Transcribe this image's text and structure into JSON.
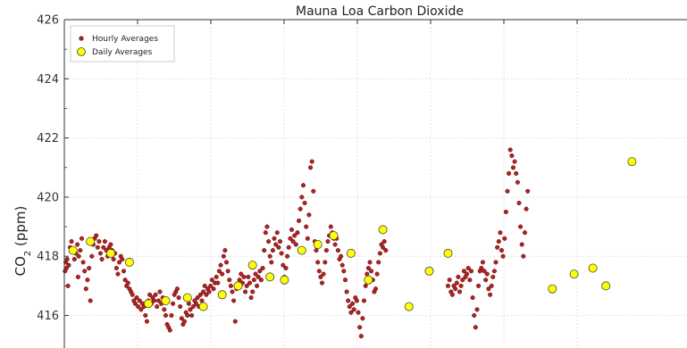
{
  "chart_data": {
    "type": "scatter",
    "title": "Mauna Loa Carbon Dioxide",
    "ylabel_main": "CO",
    "ylabel_sub": "2",
    "ylabel_tail": " (ppm)",
    "ylim": [
      414.9,
      426
    ],
    "yticks": [
      416,
      418,
      420,
      422,
      424,
      426
    ],
    "ytick_labels": [
      "416",
      "418",
      "420",
      "422",
      "424",
      "426"
    ],
    "xlim": [
      0,
      43
    ],
    "grid": true,
    "legend_placement": "top-left",
    "colors": {
      "hourly": "#b22222",
      "hourly_edge": "#5a0a0a",
      "daily": "#ffff00",
      "daily_edge": "#444444",
      "grid": "#dddddd"
    },
    "series": [
      {
        "name": "Hourly Averages",
        "marker": "small-dot",
        "points": [
          [
            0.05,
            417.5
          ],
          [
            0.1,
            417.8
          ],
          [
            0.15,
            417.6
          ],
          [
            0.2,
            417.9
          ],
          [
            0.25,
            417.0
          ],
          [
            0.3,
            417.7
          ],
          [
            0.4,
            418.3
          ],
          [
            0.5,
            418.5
          ],
          [
            0.6,
            418.2
          ],
          [
            0.7,
            417.9
          ],
          [
            0.8,
            418.1
          ],
          [
            0.9,
            418.4
          ],
          [
            0.95,
            417.3
          ],
          [
            1.0,
            418.0
          ],
          [
            1.1,
            418.2
          ],
          [
            1.2,
            418.6
          ],
          [
            1.3,
            417.8
          ],
          [
            1.4,
            417.5
          ],
          [
            1.5,
            416.9
          ],
          [
            1.6,
            417.2
          ],
          [
            1.7,
            417.6
          ],
          [
            1.8,
            416.5
          ],
          [
            1.9,
            418.0
          ],
          [
            2.0,
            418.4
          ],
          [
            2.1,
            418.6
          ],
          [
            2.2,
            418.7
          ],
          [
            2.3,
            418.3
          ],
          [
            2.4,
            418.5
          ],
          [
            2.5,
            418.1
          ],
          [
            2.6,
            417.9
          ],
          [
            2.7,
            418.3
          ],
          [
            2.8,
            418.5
          ],
          [
            2.9,
            418.2
          ],
          [
            3.0,
            418.0
          ],
          [
            3.1,
            418.3
          ],
          [
            3.2,
            418.4
          ],
          [
            3.3,
            418.2
          ],
          [
            3.4,
            417.9
          ],
          [
            3.5,
            418.1
          ],
          [
            3.6,
            417.6
          ],
          [
            3.7,
            417.4
          ],
          [
            3.8,
            417.8
          ],
          [
            3.9,
            418.0
          ],
          [
            4.0,
            417.9
          ],
          [
            4.1,
            417.5
          ],
          [
            4.2,
            417.2
          ],
          [
            4.3,
            417.0
          ],
          [
            4.4,
            417.1
          ],
          [
            4.5,
            416.9
          ],
          [
            4.6,
            416.8
          ],
          [
            4.7,
            416.7
          ],
          [
            4.8,
            416.5
          ],
          [
            4.9,
            416.4
          ],
          [
            5.0,
            416.6
          ],
          [
            5.1,
            416.3
          ],
          [
            5.2,
            416.5
          ],
          [
            5.3,
            416.2
          ],
          [
            5.4,
            416.4
          ],
          [
            5.5,
            416.3
          ],
          [
            5.6,
            416.0
          ],
          [
            5.7,
            415.8
          ],
          [
            5.8,
            416.5
          ],
          [
            5.9,
            416.7
          ],
          [
            6.0,
            416.4
          ],
          [
            6.1,
            416.6
          ],
          [
            6.2,
            416.5
          ],
          [
            6.3,
            416.7
          ],
          [
            6.4,
            416.3
          ],
          [
            6.5,
            416.5
          ],
          [
            6.6,
            416.8
          ],
          [
            6.7,
            416.4
          ],
          [
            6.8,
            416.6
          ],
          [
            6.9,
            416.2
          ],
          [
            7.0,
            416.0
          ],
          [
            7.1,
            415.7
          ],
          [
            7.2,
            415.6
          ],
          [
            7.3,
            415.5
          ],
          [
            7.4,
            416.0
          ],
          [
            7.5,
            416.4
          ],
          [
            7.6,
            416.7
          ],
          [
            7.7,
            416.8
          ],
          [
            7.8,
            416.9
          ],
          [
            7.9,
            416.6
          ],
          [
            8.0,
            416.3
          ],
          [
            8.1,
            415.9
          ],
          [
            8.2,
            415.7
          ],
          [
            8.3,
            415.8
          ],
          [
            8.4,
            416.1
          ],
          [
            8.5,
            416.0
          ],
          [
            8.6,
            416.4
          ],
          [
            8.7,
            416.2
          ],
          [
            8.8,
            416.0
          ],
          [
            8.9,
            416.3
          ],
          [
            9.0,
            416.5
          ],
          [
            9.1,
            416.4
          ],
          [
            9.2,
            416.6
          ],
          [
            9.3,
            416.3
          ],
          [
            9.4,
            416.7
          ],
          [
            9.5,
            416.5
          ],
          [
            9.6,
            416.8
          ],
          [
            9.7,
            417.0
          ],
          [
            9.8,
            416.7
          ],
          [
            9.9,
            416.9
          ],
          [
            10.0,
            416.8
          ],
          [
            10.1,
            417.0
          ],
          [
            10.2,
            417.2
          ],
          [
            10.3,
            416.9
          ],
          [
            10.4,
            417.1
          ],
          [
            10.5,
            417.3
          ],
          [
            10.6,
            417.1
          ],
          [
            10.7,
            417.5
          ],
          [
            10.8,
            417.7
          ],
          [
            10.9,
            417.4
          ],
          [
            11.0,
            418.0
          ],
          [
            11.1,
            418.2
          ],
          [
            11.2,
            417.8
          ],
          [
            11.3,
            417.5
          ],
          [
            11.4,
            417.2
          ],
          [
            11.5,
            417.0
          ],
          [
            11.6,
            416.8
          ],
          [
            11.7,
            416.5
          ],
          [
            11.8,
            415.8
          ],
          [
            11.9,
            416.9
          ],
          [
            12.0,
            417.0
          ],
          [
            12.1,
            417.2
          ],
          [
            12.2,
            417.4
          ],
          [
            12.3,
            417.1
          ],
          [
            12.4,
            417.3
          ],
          [
            12.5,
            416.8
          ],
          [
            12.6,
            417.0
          ],
          [
            12.7,
            417.3
          ],
          [
            12.8,
            417.1
          ],
          [
            12.9,
            416.6
          ],
          [
            13.0,
            416.8
          ],
          [
            13.1,
            417.2
          ],
          [
            13.2,
            417.4
          ],
          [
            13.3,
            417.0
          ],
          [
            13.4,
            417.3
          ],
          [
            13.5,
            417.5
          ],
          [
            13.6,
            417.2
          ],
          [
            13.7,
            417.6
          ],
          [
            13.8,
            418.2
          ],
          [
            13.9,
            418.8
          ],
          [
            14.0,
            419.0
          ],
          [
            14.1,
            418.5
          ],
          [
            14.2,
            418.0
          ],
          [
            14.3,
            417.8
          ],
          [
            14.4,
            418.2
          ],
          [
            14.5,
            418.6
          ],
          [
            14.6,
            418.4
          ],
          [
            14.7,
            418.8
          ],
          [
            14.8,
            418.3
          ],
          [
            14.9,
            418.5
          ],
          [
            15.0,
            418.1
          ],
          [
            15.1,
            417.7
          ],
          [
            15.2,
            417.3
          ],
          [
            15.3,
            417.6
          ],
          [
            15.4,
            418.0
          ],
          [
            15.5,
            418.3
          ],
          [
            15.6,
            418.6
          ],
          [
            15.7,
            418.9
          ],
          [
            15.8,
            418.5
          ],
          [
            15.9,
            418.7
          ],
          [
            16.0,
            418.4
          ],
          [
            16.1,
            418.8
          ],
          [
            16.2,
            419.2
          ],
          [
            16.3,
            419.6
          ],
          [
            16.4,
            420.0
          ],
          [
            16.5,
            420.4
          ],
          [
            16.6,
            419.8
          ],
          [
            16.7,
            419.0
          ],
          [
            16.8,
            418.6
          ],
          [
            16.9,
            419.4
          ],
          [
            17.0,
            421.0
          ],
          [
            17.1,
            421.2
          ],
          [
            17.2,
            420.2
          ],
          [
            17.3,
            418.5
          ],
          [
            17.4,
            418.2
          ],
          [
            17.5,
            417.8
          ],
          [
            17.6,
            417.5
          ],
          [
            17.7,
            417.3
          ],
          [
            17.8,
            417.1
          ],
          [
            17.9,
            417.4
          ],
          [
            18.0,
            417.8
          ],
          [
            18.1,
            418.2
          ],
          [
            18.2,
            418.5
          ],
          [
            18.3,
            418.7
          ],
          [
            18.4,
            419.0
          ],
          [
            18.5,
            418.8
          ],
          [
            18.6,
            418.6
          ],
          [
            18.7,
            418.4
          ],
          [
            18.8,
            418.6
          ],
          [
            18.9,
            418.2
          ],
          [
            19.0,
            417.9
          ],
          [
            19.1,
            418.0
          ],
          [
            19.2,
            417.7
          ],
          [
            19.3,
            417.5
          ],
          [
            19.4,
            417.2
          ],
          [
            19.5,
            416.8
          ],
          [
            19.6,
            416.5
          ],
          [
            19.7,
            416.3
          ],
          [
            19.8,
            416.1
          ],
          [
            19.9,
            416.4
          ],
          [
            20.0,
            416.2
          ],
          [
            20.1,
            416.6
          ],
          [
            20.2,
            416.5
          ],
          [
            20.3,
            416.1
          ],
          [
            20.4,
            415.6
          ],
          [
            20.5,
            415.3
          ],
          [
            20.6,
            415.9
          ],
          [
            20.7,
            416.5
          ],
          [
            20.8,
            417.0
          ],
          [
            20.9,
            417.4
          ],
          [
            21.0,
            417.6
          ],
          [
            21.1,
            417.8
          ],
          [
            21.2,
            417.5
          ],
          [
            21.3,
            417.2
          ],
          [
            21.4,
            416.8
          ],
          [
            21.5,
            416.9
          ],
          [
            21.6,
            417.4
          ],
          [
            21.7,
            417.8
          ],
          [
            21.8,
            418.1
          ],
          [
            21.9,
            418.4
          ],
          [
            22.0,
            418.3
          ],
          [
            22.1,
            418.5
          ],
          [
            22.2,
            418.2
          ],
          [
            26.5,
            417.0
          ],
          [
            26.6,
            417.2
          ],
          [
            26.7,
            416.8
          ],
          [
            26.8,
            416.7
          ],
          [
            26.9,
            417.0
          ],
          [
            27.0,
            416.9
          ],
          [
            27.1,
            417.1
          ],
          [
            27.2,
            417.3
          ],
          [
            27.3,
            416.8
          ],
          [
            27.4,
            417.0
          ],
          [
            27.5,
            417.2
          ],
          [
            27.6,
            417.5
          ],
          [
            27.7,
            417.3
          ],
          [
            27.8,
            417.4
          ],
          [
            27.9,
            417.6
          ],
          [
            28.0,
            417.2
          ],
          [
            28.1,
            417.5
          ],
          [
            28.2,
            416.6
          ],
          [
            28.3,
            416.0
          ],
          [
            28.4,
            415.6
          ],
          [
            28.5,
            416.2
          ],
          [
            28.6,
            417.0
          ],
          [
            28.7,
            417.5
          ],
          [
            28.8,
            417.6
          ],
          [
            28.9,
            417.8
          ],
          [
            29.0,
            417.5
          ],
          [
            29.1,
            417.2
          ],
          [
            29.2,
            417.4
          ],
          [
            29.3,
            416.9
          ],
          [
            29.4,
            416.7
          ],
          [
            29.5,
            417.0
          ],
          [
            29.6,
            417.3
          ],
          [
            29.7,
            417.5
          ],
          [
            29.8,
            417.8
          ],
          [
            29.9,
            418.3
          ],
          [
            30.0,
            418.5
          ],
          [
            30.1,
            418.8
          ],
          [
            30.2,
            418.2
          ],
          [
            30.3,
            418.0
          ],
          [
            30.4,
            418.6
          ],
          [
            30.5,
            419.5
          ],
          [
            30.6,
            420.2
          ],
          [
            30.7,
            420.8
          ],
          [
            30.8,
            421.6
          ],
          [
            30.9,
            421.4
          ],
          [
            31.0,
            421.0
          ],
          [
            31.1,
            421.2
          ],
          [
            31.2,
            420.8
          ],
          [
            31.3,
            420.5
          ],
          [
            31.4,
            419.8
          ],
          [
            31.5,
            419.0
          ],
          [
            31.6,
            418.4
          ],
          [
            31.7,
            418.0
          ],
          [
            31.8,
            418.8
          ],
          [
            31.9,
            419.6
          ],
          [
            32.0,
            420.2
          ]
        ]
      },
      {
        "name": "Daily Averages",
        "marker": "large-circle",
        "points": [
          [
            0.6,
            418.2
          ],
          [
            1.8,
            418.5
          ],
          [
            3.2,
            418.1
          ],
          [
            4.5,
            417.8
          ],
          [
            5.8,
            416.4
          ],
          [
            7.0,
            416.5
          ],
          [
            8.5,
            416.6
          ],
          [
            9.6,
            416.3
          ],
          [
            10.9,
            416.7
          ],
          [
            12.0,
            417.0
          ],
          [
            13.0,
            417.7
          ],
          [
            14.2,
            417.3
          ],
          [
            15.2,
            417.2
          ],
          [
            16.4,
            418.2
          ],
          [
            17.5,
            418.4
          ],
          [
            18.6,
            418.7
          ],
          [
            19.8,
            418.1
          ],
          [
            21.0,
            417.2
          ],
          [
            22.0,
            418.9
          ],
          [
            23.8,
            416.3
          ],
          [
            25.2,
            417.5
          ],
          [
            26.5,
            418.1
          ],
          [
            33.7,
            416.9
          ],
          [
            35.2,
            417.4
          ],
          [
            36.5,
            417.6
          ],
          [
            37.4,
            417.0
          ],
          [
            39.2,
            421.2
          ]
        ]
      }
    ]
  }
}
